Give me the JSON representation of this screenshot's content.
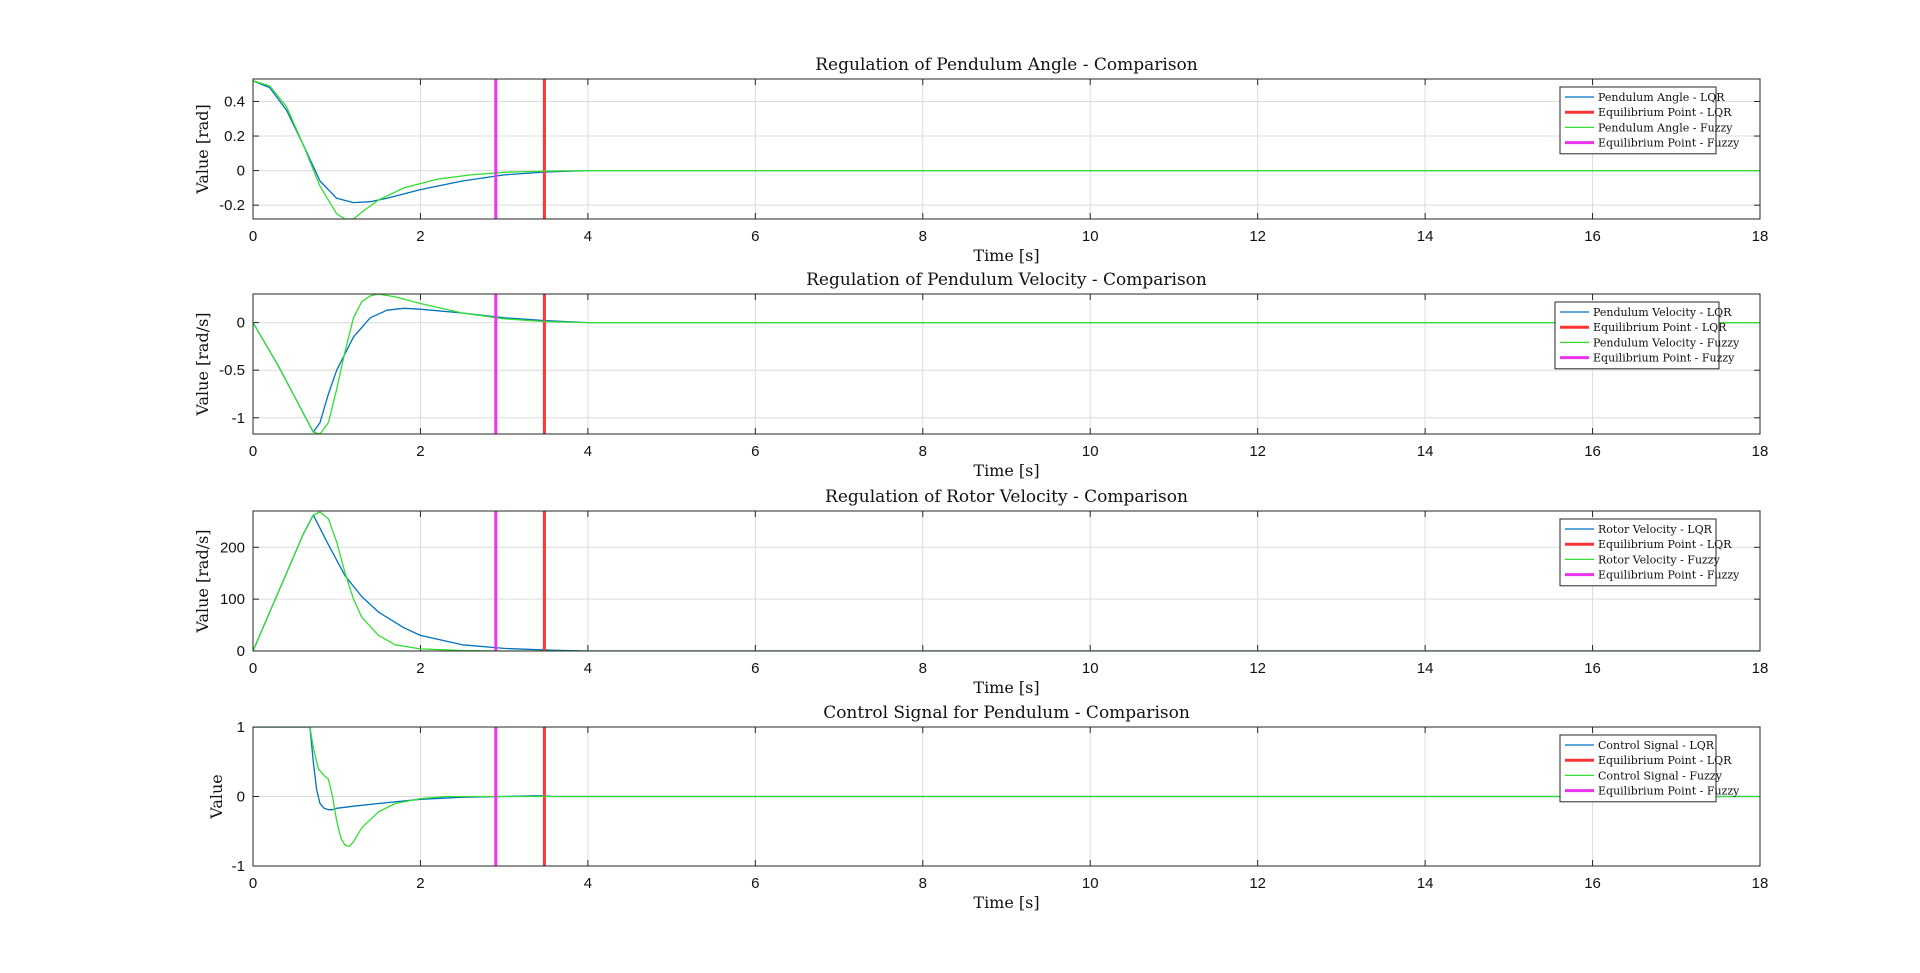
{
  "chart_data": [
    {
      "type": "line",
      "title": "Regulation of Pendulum Angle - Comparison",
      "xlabel": "Time [s]",
      "ylabel": "Value [rad]",
      "xlim": [
        0,
        18
      ],
      "ylim": [
        -0.28,
        0.53
      ],
      "xticks": [
        0,
        2,
        4,
        6,
        8,
        10,
        12,
        14,
        16,
        18
      ],
      "yticks": [
        -0.2,
        0,
        0.2,
        0.4
      ],
      "ytick_labels": [
        "-0.2",
        "0",
        "0.2",
        "0.4"
      ],
      "grid": true,
      "legend_position": "top-right",
      "series": [
        {
          "name": "Pendulum Angle - LQR",
          "color": "#0072BD",
          "x": [
            0,
            0.2,
            0.4,
            0.6,
            0.8,
            1.0,
            1.2,
            1.4,
            1.6,
            2.0,
            2.5,
            3.0,
            3.5,
            4.0,
            5.0,
            18
          ],
          "y": [
            0.52,
            0.48,
            0.35,
            0.15,
            -0.06,
            -0.16,
            -0.185,
            -0.18,
            -0.16,
            -0.11,
            -0.06,
            -0.025,
            -0.008,
            0,
            0,
            0
          ]
        },
        {
          "name": "Equilibrium Point - LQR",
          "color": "#ff3333",
          "x": [
            3.48,
            3.48
          ],
          "y": [
            -0.28,
            0.53
          ]
        },
        {
          "name": "Pendulum Angle - Fuzzy",
          "color": "#33dd33",
          "x": [
            0,
            0.2,
            0.4,
            0.6,
            0.8,
            1.0,
            1.1,
            1.2,
            1.3,
            1.5,
            1.8,
            2.2,
            2.6,
            3.0,
            3.5,
            4.0,
            18
          ],
          "y": [
            0.52,
            0.49,
            0.37,
            0.15,
            -0.09,
            -0.25,
            -0.28,
            -0.28,
            -0.24,
            -0.17,
            -0.1,
            -0.05,
            -0.025,
            -0.01,
            -0.003,
            0,
            0
          ]
        },
        {
          "name": "Equilibrium Point - Fuzzy",
          "color": "#ee33ee",
          "x": [
            2.9,
            2.9
          ],
          "y": [
            -0.28,
            0.53
          ]
        }
      ]
    },
    {
      "type": "line",
      "title": "Regulation of Pendulum Velocity - Comparison",
      "xlabel": "Time [s]",
      "ylabel": "Value [rad/s]",
      "xlim": [
        0,
        18
      ],
      "ylim": [
        -1.17,
        0.3
      ],
      "xticks": [
        0,
        2,
        4,
        6,
        8,
        10,
        12,
        14,
        16,
        18
      ],
      "yticks": [
        -1,
        -0.5,
        0
      ],
      "ytick_labels": [
        "-1",
        "-0.5",
        "0"
      ],
      "grid": true,
      "legend_position": "top-right",
      "series": [
        {
          "name": "Pendulum Velocity - LQR",
          "color": "#0072BD",
          "x": [
            0,
            0.3,
            0.6,
            0.72,
            0.8,
            0.9,
            1.0,
            1.2,
            1.4,
            1.6,
            1.8,
            2.0,
            2.5,
            3.0,
            3.5,
            4.0,
            18
          ],
          "y": [
            0,
            -0.45,
            -0.95,
            -1.15,
            -1.05,
            -0.75,
            -0.5,
            -0.15,
            0.05,
            0.13,
            0.15,
            0.14,
            0.1,
            0.05,
            0.02,
            0,
            0
          ]
        },
        {
          "name": "Equilibrium Point - LQR",
          "color": "#ff3333",
          "x": [
            3.48,
            3.48
          ],
          "y": [
            -1.17,
            0.3
          ]
        },
        {
          "name": "Pendulum Velocity - Fuzzy",
          "color": "#33dd33",
          "x": [
            0,
            0.3,
            0.6,
            0.72,
            0.8,
            0.9,
            1.0,
            1.1,
            1.2,
            1.3,
            1.4,
            1.5,
            1.7,
            2.0,
            2.5,
            3.0,
            3.5,
            4.0,
            18
          ],
          "y": [
            0,
            -0.45,
            -0.95,
            -1.15,
            -1.17,
            -1.05,
            -0.7,
            -0.3,
            0.05,
            0.22,
            0.28,
            0.3,
            0.27,
            0.2,
            0.1,
            0.04,
            0.01,
            0,
            0
          ]
        },
        {
          "name": "Equilibrium Point - Fuzzy",
          "color": "#ee33ee",
          "x": [
            2.9,
            2.9
          ],
          "y": [
            -1.17,
            0.3
          ]
        }
      ]
    },
    {
      "type": "line",
      "title": "Regulation of Rotor Velocity - Comparison",
      "xlabel": "Time [s]",
      "ylabel": "Value [rad/s]",
      "xlim": [
        0,
        18
      ],
      "ylim": [
        0,
        270
      ],
      "xticks": [
        0,
        2,
        4,
        6,
        8,
        10,
        12,
        14,
        16,
        18
      ],
      "yticks": [
        0,
        100,
        200
      ],
      "ytick_labels": [
        "0",
        "100",
        "200"
      ],
      "grid": true,
      "legend_position": "top-right",
      "series": [
        {
          "name": "Rotor Velocity - LQR",
          "color": "#0072BD",
          "x": [
            0,
            0.2,
            0.4,
            0.6,
            0.72,
            0.9,
            1.1,
            1.3,
            1.5,
            1.8,
            2.0,
            2.5,
            3.0,
            3.5,
            4.0,
            18
          ],
          "y": [
            0,
            75,
            150,
            225,
            262,
            205,
            145,
            105,
            75,
            45,
            30,
            12,
            5,
            2,
            0,
            0
          ]
        },
        {
          "name": "Equilibrium Point - LQR",
          "color": "#ff3333",
          "x": [
            3.48,
            3.48
          ],
          "y": [
            0,
            270
          ]
        },
        {
          "name": "Rotor Velocity - Fuzzy",
          "color": "#33dd33",
          "x": [
            0,
            0.2,
            0.4,
            0.6,
            0.72,
            0.8,
            0.9,
            1.0,
            1.1,
            1.2,
            1.3,
            1.5,
            1.7,
            2.0,
            2.5,
            3.0,
            18
          ],
          "y": [
            0,
            75,
            150,
            225,
            262,
            268,
            255,
            210,
            150,
            100,
            65,
            30,
            12,
            4,
            1,
            0,
            0
          ]
        },
        {
          "name": "Equilibrium Point - Fuzzy",
          "color": "#ee33ee",
          "x": [
            2.9,
            2.9
          ],
          "y": [
            0,
            270
          ]
        }
      ]
    },
    {
      "type": "line",
      "title": "Control Signal for Pendulum - Comparison",
      "xlabel": "Time [s]",
      "ylabel": "Value",
      "xlim": [
        0,
        18
      ],
      "ylim": [
        -1,
        1
      ],
      "xticks": [
        0,
        2,
        4,
        6,
        8,
        10,
        12,
        14,
        16,
        18
      ],
      "yticks": [
        -1,
        0,
        1
      ],
      "ytick_labels": [
        "-1",
        "0",
        "1"
      ],
      "grid": true,
      "legend_position": "top-right",
      "series": [
        {
          "name": "Control Signal - LQR",
          "color": "#0072BD",
          "x": [
            0,
            0.68,
            0.72,
            0.76,
            0.8,
            0.85,
            0.9,
            0.95,
            1.0,
            1.2,
            1.5,
            2.0,
            2.5,
            3.0,
            3.4,
            3.6,
            18
          ],
          "y": [
            1,
            1,
            0.5,
            0.1,
            -0.1,
            -0.17,
            -0.19,
            -0.19,
            -0.17,
            -0.14,
            -0.1,
            -0.04,
            -0.01,
            0,
            0.01,
            0,
            0
          ]
        },
        {
          "name": "Equilibrium Point - LQR",
          "color": "#ff3333",
          "x": [
            3.48,
            3.48
          ],
          "y": [
            -1,
            1
          ]
        },
        {
          "name": "Control Signal - Fuzzy",
          "color": "#33dd33",
          "x": [
            0,
            0.68,
            0.72,
            0.78,
            0.85,
            0.9,
            0.95,
            1.0,
            1.05,
            1.1,
            1.15,
            1.2,
            1.3,
            1.5,
            1.7,
            2.0,
            2.3,
            3.0,
            18
          ],
          "y": [
            1,
            1,
            0.7,
            0.4,
            0.3,
            0.25,
            0.0,
            -0.35,
            -0.6,
            -0.7,
            -0.72,
            -0.65,
            -0.45,
            -0.22,
            -0.1,
            -0.03,
            0,
            0,
            0
          ]
        },
        {
          "name": "Equilibrium Point - Fuzzy",
          "color": "#ee33ee",
          "x": [
            2.9,
            2.9
          ],
          "y": [
            -1,
            1
          ]
        }
      ]
    }
  ]
}
